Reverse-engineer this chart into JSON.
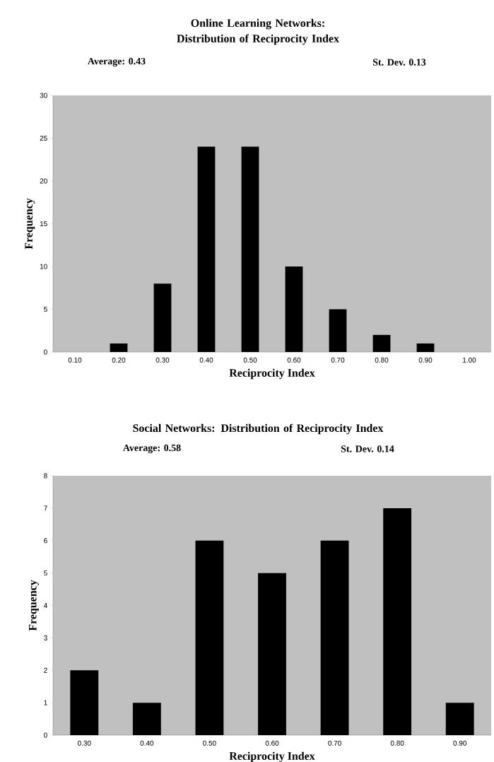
{
  "chart_data": [
    {
      "type": "bar",
      "title": "Online Learning Networks: Distribution of Reciprocity Index",
      "annotations": [
        "Average: 0.43",
        "St. Dev. 0.13"
      ],
      "xlabel": "Reciprocity Index",
      "ylabel": "Frequency",
      "categories": [
        "0.10",
        "0.20",
        "0.30",
        "0.40",
        "0.50",
        "0.60",
        "0.70",
        "0.80",
        "0.90",
        "1.00"
      ],
      "values": [
        0,
        1,
        8,
        24,
        24,
        10,
        5,
        2,
        1,
        0
      ],
      "color": "#000000",
      "ylim": [
        0,
        30
      ],
      "yticks": [
        0,
        5,
        10,
        15,
        20,
        25,
        30
      ],
      "grid": false
    },
    {
      "type": "bar",
      "title": "Social Networks: Distribution of Reciprocity Index",
      "annotations": [
        "Average: 0.58",
        "St. Dev. 0.14"
      ],
      "xlabel": "Reciprocity Index",
      "ylabel": "Frequency",
      "categories": [
        "0.30",
        "0.40",
        "0.50",
        "0.60",
        "0.70",
        "0.80",
        "0.90"
      ],
      "values": [
        2,
        1,
        6,
        5,
        6,
        7,
        1
      ],
      "color": "#000000",
      "ylim": [
        0,
        8
      ],
      "yticks": [
        0,
        1,
        2,
        3,
        4,
        5,
        6,
        7,
        8
      ],
      "grid": false
    }
  ]
}
